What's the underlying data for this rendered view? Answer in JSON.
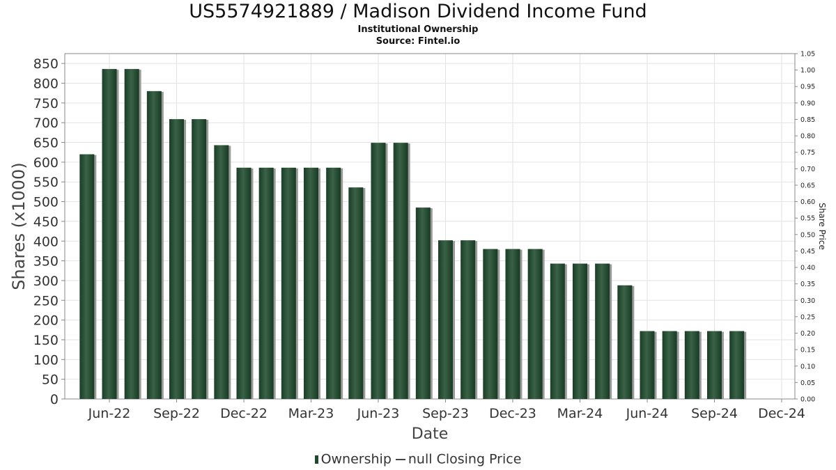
{
  "title": "US5574921889 / Madison Dividend Income Fund",
  "subtitle": "Institutional Ownership",
  "source": "Source: Fintel.io",
  "legend": {
    "bar_label": "Ownership",
    "line_label": "null Closing Price"
  },
  "colors": {
    "bar": "#1f4a2e",
    "bar_highlight": "#3d6b4c",
    "shadow": "#9a9a9a",
    "grid": "#dddddd",
    "axis": "#888888"
  },
  "chart_data": {
    "type": "bar",
    "title": "US5574921889 / Madison Dividend Income Fund",
    "subtitle": "Institutional Ownership",
    "xlabel": "Date",
    "ylabel": "Shares (x1000)",
    "y2label": "Share Price",
    "ylim": [
      0,
      875
    ],
    "y2lim": [
      0,
      1.05
    ],
    "yticks": [
      0,
      50,
      100,
      150,
      200,
      250,
      300,
      350,
      400,
      450,
      500,
      550,
      600,
      650,
      700,
      750,
      800,
      850
    ],
    "y2ticks": [
      "0.00",
      "0.05",
      "0.10",
      "0.15",
      "0.20",
      "0.25",
      "0.30",
      "0.35",
      "0.40",
      "0.45",
      "0.50",
      "0.55",
      "0.60",
      "0.65",
      "0.70",
      "0.75",
      "0.80",
      "0.85",
      "0.90",
      "0.95",
      "1.00",
      "1.05"
    ],
    "xticks": [
      "Jun-22",
      "Sep-22",
      "Dec-22",
      "Mar-23",
      "Jun-23",
      "Sep-23",
      "Dec-23",
      "Mar-24",
      "Jun-24",
      "Sep-24",
      "Dec-24"
    ],
    "grid": true,
    "legend_position": "bottom",
    "series": [
      {
        "name": "Ownership",
        "values": [
          620,
          836,
          836,
          780,
          709,
          709,
          643,
          586,
          586,
          586,
          586,
          586,
          536,
          649,
          649,
          485,
          402,
          402,
          380,
          380,
          380,
          343,
          343,
          343,
          288,
          172,
          172,
          172,
          172,
          172
        ]
      }
    ]
  }
}
